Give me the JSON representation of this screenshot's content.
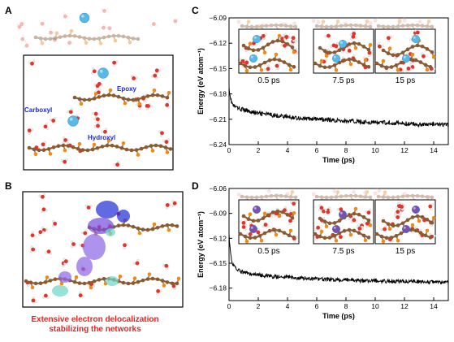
{
  "panels": {
    "a": {
      "label": "A",
      "tags": {
        "epoxy": "Epoxy",
        "carboxyl": "Carboxyl",
        "hydroxyl": "Hydroxyl"
      }
    },
    "b": {
      "label": "B",
      "caption_line1": "Extensive electron delocalization",
      "caption_line2": "stabilizing the networks"
    },
    "c": {
      "label": "C",
      "snapshots": [
        "0.5 ps",
        "7.5 ps",
        "15 ps"
      ]
    },
    "d": {
      "label": "D",
      "snapshots": [
        "0.5 ps",
        "7.5 ps",
        "15 ps"
      ]
    }
  },
  "colors": {
    "carbon": "#8a5a32",
    "oxygen": "#e0342c",
    "hydrogen": "#f1eeee",
    "ion_c": "#56b9e6",
    "ion_d": "#7a4fb0",
    "functional": "#f08a17",
    "caption": "#e8231f",
    "trace": "#000000"
  },
  "chart_data": [
    {
      "type": "line",
      "panel": "C",
      "xlabel": "Time (ps)",
      "ylabel": "Energy (eV atom⁻¹)",
      "xlim": [
        0,
        15
      ],
      "ylim": [
        -6.24,
        -6.09
      ],
      "xticks": [
        "0",
        "2",
        "4",
        "6",
        "8",
        "10",
        "12",
        "14"
      ],
      "yticks": [
        "-6.09",
        "-6.12",
        "-6.15",
        "-6.18",
        "-6.21",
        "-6.24"
      ],
      "series": [
        {
          "x": [
            0,
            0.1,
            0.2,
            0.3,
            0.5,
            1,
            1.5,
            2,
            3,
            4,
            5,
            6,
            7,
            8,
            9,
            10,
            11,
            12,
            13,
            14,
            15
          ],
          "values": [
            -6.172,
            -6.185,
            -6.191,
            -6.194,
            -6.196,
            -6.199,
            -6.201,
            -6.203,
            -6.205,
            -6.207,
            -6.209,
            -6.21,
            -6.211,
            -6.212,
            -6.213,
            -6.214,
            -6.214,
            -6.215,
            -6.216,
            -6.216,
            -6.217
          ]
        }
      ]
    },
    {
      "type": "line",
      "panel": "D",
      "xlabel": "Time (ps)",
      "ylabel": "Energy (eV atom⁻¹)",
      "xlim": [
        0,
        15
      ],
      "ylim": [
        -6.195,
        -6.06
      ],
      "xticks": [
        "0",
        "2",
        "4",
        "6",
        "8",
        "10",
        "12",
        "14"
      ],
      "yticks": [
        "-6.06",
        "-6.09",
        "-6.12",
        "-6.15",
        "-6.18"
      ],
      "series": [
        {
          "x": [
            0,
            0.05,
            0.1,
            0.2,
            0.3,
            0.5,
            1,
            1.5,
            2,
            3,
            4,
            5,
            6,
            7,
            8,
            9,
            10,
            11,
            12,
            13,
            14,
            15
          ],
          "values": [
            -6.115,
            -6.127,
            -6.138,
            -6.148,
            -6.153,
            -6.158,
            -6.161,
            -6.163,
            -6.164,
            -6.166,
            -6.167,
            -6.168,
            -6.169,
            -6.17,
            -6.17,
            -6.171,
            -6.171,
            -6.172,
            -6.172,
            -6.172,
            -6.173,
            -6.173
          ]
        }
      ]
    }
  ]
}
